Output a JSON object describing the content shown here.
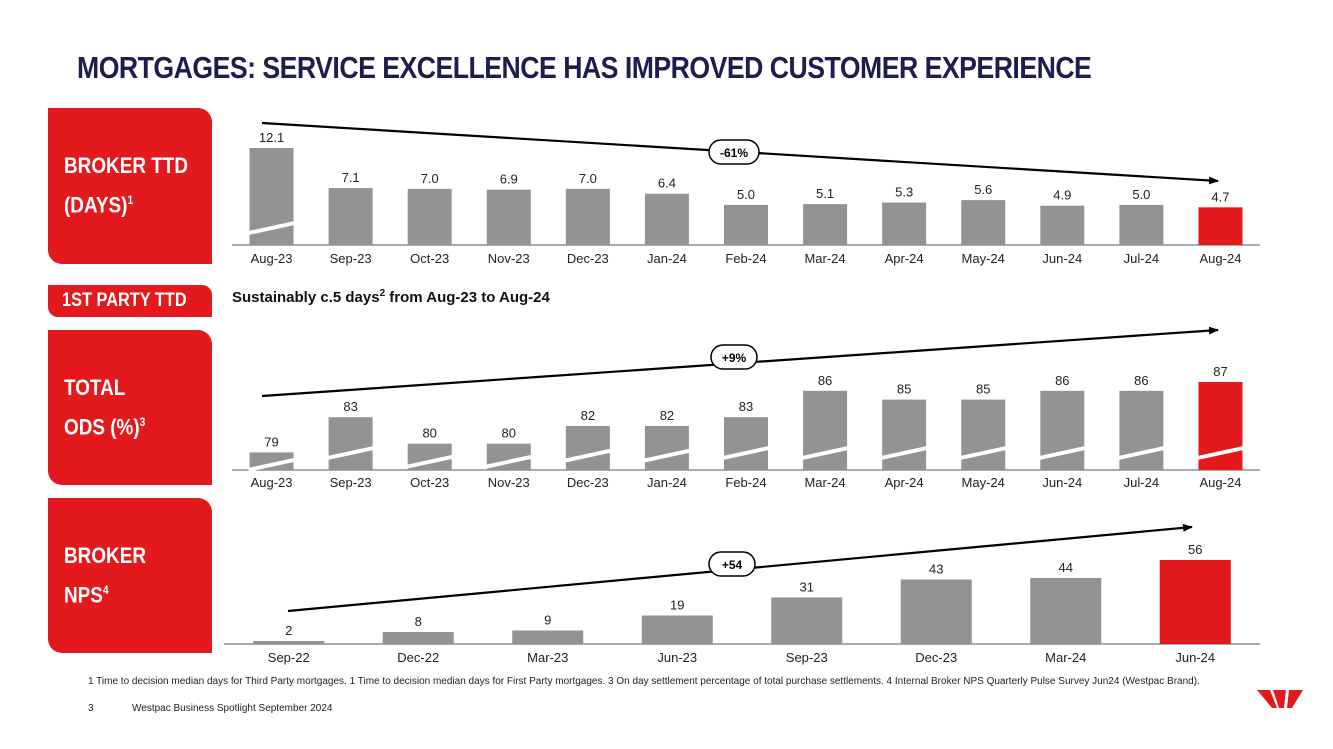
{
  "title": "MORTGAGES: SERVICE EXCELLENCE HAS IMPROVED CUSTOMER EXPERIENCE",
  "boxes": {
    "broker_ttd": {
      "text": "BROKER TTD\n(DAYS)",
      "sup": "1"
    },
    "total_ods": {
      "text": "TOTAL\nODS (%)",
      "sup": "3"
    },
    "broker_nps": {
      "text": "BROKER NPS",
      "sup": "4"
    },
    "first_party": "1ST PARTY TTD"
  },
  "first_party_text": {
    "before": "Sustainably c.5 days",
    "sup": "2",
    "after": " from Aug-23 to Aug-24"
  },
  "colors": {
    "bar": "#939393",
    "highlight": "#e3191d",
    "title": "#1f1c4f"
  },
  "chart_data": [
    {
      "type": "bar",
      "title": "BROKER TTD (DAYS)",
      "categories": [
        "Aug-23",
        "Sep-23",
        "Oct-23",
        "Nov-23",
        "Dec-23",
        "Jan-24",
        "Feb-24",
        "Mar-24",
        "Apr-24",
        "May-24",
        "Jun-24",
        "Jul-24",
        "Aug-24"
      ],
      "values": [
        12.1,
        7.1,
        7.0,
        6.9,
        7.0,
        6.4,
        5.0,
        5.1,
        5.3,
        5.6,
        4.9,
        5.0,
        4.7
      ],
      "labels": [
        "12.1",
        "7.1",
        "7.0",
        "6.9",
        "7.0",
        "6.4",
        "5.0",
        "5.1",
        "5.3",
        "5.6",
        "4.9",
        "5.0",
        "4.7"
      ],
      "highlight_index": 12,
      "broken_axis_bars": [
        0
      ],
      "trend_label": "-61%"
    },
    {
      "type": "bar",
      "title": "TOTAL ODS (%)",
      "categories": [
        "Aug-23",
        "Sep-23",
        "Oct-23",
        "Nov-23",
        "Dec-23",
        "Jan-24",
        "Feb-24",
        "Mar-24",
        "Apr-24",
        "May-24",
        "Jun-24",
        "Jul-24",
        "Aug-24"
      ],
      "values": [
        79,
        83,
        80,
        80,
        82,
        82,
        83,
        86,
        85,
        85,
        86,
        86,
        87
      ],
      "labels": [
        "79",
        "83",
        "80",
        "80",
        "82",
        "82",
        "83",
        "86",
        "85",
        "85",
        "86",
        "86",
        "87"
      ],
      "highlight_index": 12,
      "broken_axis_bars": [
        0,
        1,
        2,
        3,
        4,
        5,
        6,
        7,
        8,
        9,
        10,
        11,
        12
      ],
      "trend_label": "+9%"
    },
    {
      "type": "bar",
      "title": "BROKER NPS",
      "categories": [
        "Sep-22",
        "Dec-22",
        "Mar-23",
        "Jun-23",
        "Sep-23",
        "Dec-23",
        "Mar-24",
        "Jun-24"
      ],
      "values": [
        2,
        8,
        9,
        19,
        31,
        43,
        44,
        56
      ],
      "labels": [
        "2",
        "8",
        "9",
        "19",
        "31",
        "43",
        "44",
        "56"
      ],
      "highlight_index": 7,
      "broken_axis_bars": [],
      "trend_label": "+54"
    }
  ],
  "footnote": "1 Time to decision median days for Third Party mortgages. 1 Time to decision median days for First Party mortgages. 3 On day settlement percentage of total purchase settlements. 4 Internal Broker NPS Quarterly Pulse Survey Jun24 (Westpac Brand).",
  "footer": {
    "page": "3",
    "text": "Westpac Business Spotlight September 2024"
  },
  "logo": "westpac-logo"
}
